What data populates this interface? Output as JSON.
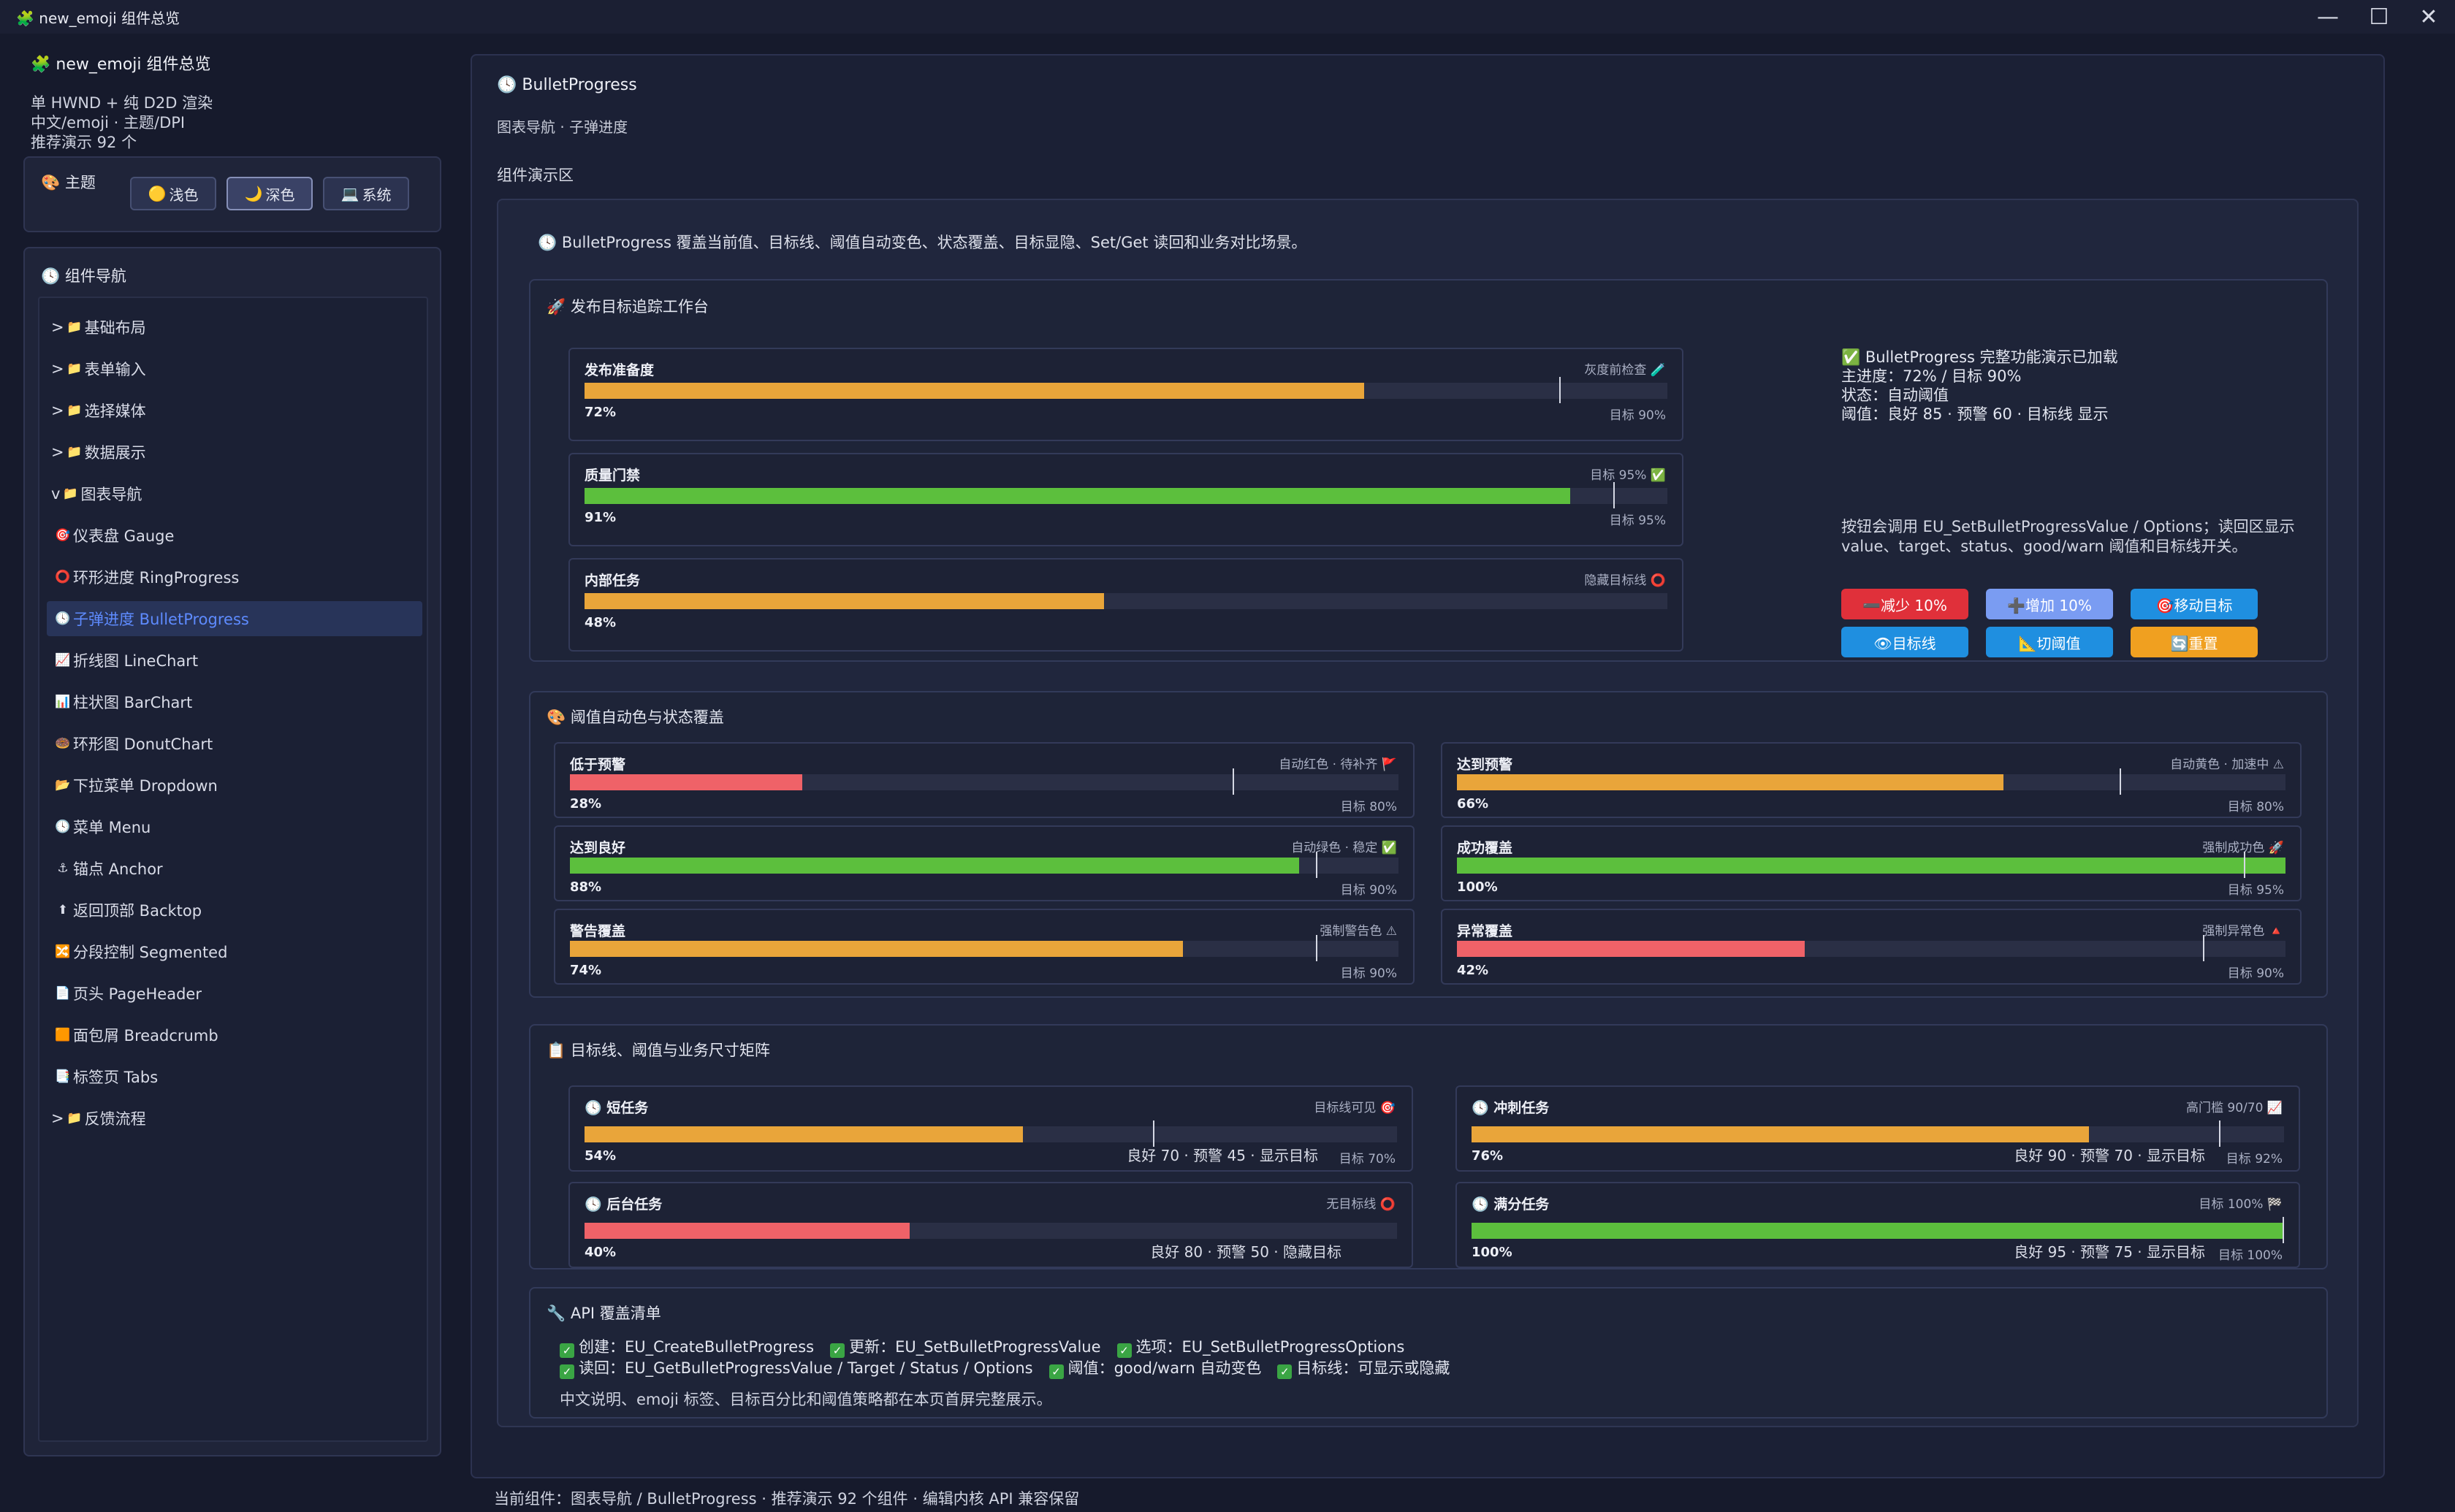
{
  "window": {
    "title": "new_emoji 组件总览",
    "icon": "puzzle-icon",
    "minimize": "—",
    "maximize": "☐",
    "close": "✕"
  },
  "sidebar": {
    "title": "new_emoji 组件总览",
    "desc": [
      "单 HWND + 纯 D2D 渲染",
      "中文/emoji · 主题/DPI",
      "推荐演示 92 个"
    ],
    "theme": {
      "label": "主题",
      "options": [
        {
          "icon": "🟡",
          "label": "浅色",
          "selected": false
        },
        {
          "icon": "🌙",
          "label": "深色",
          "selected": true
        },
        {
          "icon": "💻",
          "label": "系统",
          "selected": false
        }
      ]
    },
    "nav": {
      "label": "组件导航",
      "items": [
        {
          "prefix": ">",
          "icon": "📁",
          "label": "基础布局",
          "level": 0
        },
        {
          "prefix": ">",
          "icon": "📁",
          "label": "表单输入",
          "level": 0
        },
        {
          "prefix": ">",
          "icon": "📁",
          "label": "选择媒体",
          "level": 0
        },
        {
          "prefix": ">",
          "icon": "📁",
          "label": "数据展示",
          "level": 0
        },
        {
          "prefix": "v",
          "icon": "📁",
          "label": "图表导航",
          "level": 0
        },
        {
          "prefix": "",
          "icon": "🎯",
          "label": "仪表盘 Gauge",
          "level": 1
        },
        {
          "prefix": "",
          "icon": "⭕",
          "label": "环形进度 RingProgress",
          "level": 1
        },
        {
          "prefix": "",
          "icon": "🕓",
          "label": "子弹进度 BulletProgress",
          "level": 1,
          "selected": true
        },
        {
          "prefix": "",
          "icon": "📈",
          "label": "折线图 LineChart",
          "level": 1
        },
        {
          "prefix": "",
          "icon": "📊",
          "label": "柱状图 BarChart",
          "level": 1
        },
        {
          "prefix": "",
          "icon": "🍩",
          "label": "环形图 DonutChart",
          "level": 1
        },
        {
          "prefix": "",
          "icon": "📂",
          "label": "下拉菜单 Dropdown",
          "level": 1
        },
        {
          "prefix": "",
          "icon": "🕓",
          "label": "菜单 Menu",
          "level": 1
        },
        {
          "prefix": "",
          "icon": "⚓",
          "label": "锚点 Anchor",
          "level": 1
        },
        {
          "prefix": "",
          "icon": "⬆",
          "label": "返回顶部 Backtop",
          "level": 1
        },
        {
          "prefix": "",
          "icon": "🔀",
          "label": "分段控制 Segmented",
          "level": 1
        },
        {
          "prefix": "",
          "icon": "📄",
          "label": "页头 PageHeader",
          "level": 1
        },
        {
          "prefix": "",
          "icon": "🟧",
          "label": "面包屑 Breadcrumb",
          "level": 1
        },
        {
          "prefix": "",
          "icon": "📑",
          "label": "标签页 Tabs",
          "level": 1
        },
        {
          "prefix": ">",
          "icon": "📁",
          "label": "反馈流程",
          "level": 0
        }
      ]
    }
  },
  "main": {
    "title": "BulletProgress",
    "title_icon": "🕓",
    "subtitle": "图表导航 · 子弹进度",
    "demo_label": "组件演示区",
    "demo_desc": "BulletProgress 覆盖当前值、目标线、阈值自动变色、状态覆盖、目标显隐、Set/Get 读回和业务对比场景。",
    "section1": {
      "title": "发布目标追踪工作台",
      "icon": "🚀",
      "bars": [
        {
          "name": "发布准备度",
          "status": "灰度前检查 🧪",
          "value": 72,
          "target": 90,
          "target_label": "目标 90%",
          "pct": "72%",
          "color": "#e9a53a",
          "show_target": true
        },
        {
          "name": "质量门禁",
          "status": "目标 95% ✅",
          "value": 91,
          "target": 95,
          "target_label": "目标 95%",
          "pct": "91%",
          "color": "#5cbf3d",
          "show_target": true
        },
        {
          "name": "内部任务",
          "status": "隐藏目标线 ⭕",
          "value": 48,
          "target": null,
          "target_label": "",
          "pct": "48%",
          "color": "#e9a53a",
          "show_target": false
        }
      ],
      "info": "✅ BulletProgress 完整功能演示已加载\n主进度：72% / 目标 90%\n状态：自动阈值\n阈值：良好 85 · 预警 60 · 目标线 显示",
      "info2": "按钮会调用 EU_SetBulletProgressValue / Options；读回区显示 value、target、status、good/warn 阈值和目标线开关。",
      "buttons": [
        {
          "label": "➖减少 10%",
          "color": "#e0303a"
        },
        {
          "label": "➕增加 10%",
          "color": "#7a9cf2"
        },
        {
          "label": "🎯移动目标",
          "color": "#1f8fe0"
        },
        {
          "label": "👁目标线",
          "color": "#1f8fe0"
        },
        {
          "label": "📐切阈值",
          "color": "#1f8fe0"
        },
        {
          "label": "🔄重置",
          "color": "#f0a020"
        }
      ]
    },
    "section2": {
      "title": "阈值自动色与状态覆盖",
      "icon": "🎨",
      "bars": [
        {
          "name": "低于预警",
          "status": "自动红色 · 待补齐 🚩",
          "value": 28,
          "target": 80,
          "target_label": "目标 80%",
          "pct": "28%",
          "color": "#ef6268"
        },
        {
          "name": "达到预警",
          "status": "自动黄色 · 加速中 ⚠",
          "value": 66,
          "target": 80,
          "target_label": "目标 80%",
          "pct": "66%",
          "color": "#e9a53a"
        },
        {
          "name": "达到良好",
          "status": "自动绿色 · 稳定 ✅",
          "value": 88,
          "target": 90,
          "target_label": "目标 90%",
          "pct": "88%",
          "color": "#5cbf3d"
        },
        {
          "name": "成功覆盖",
          "status": "强制成功色 🚀",
          "value": 100,
          "target": 95,
          "target_label": "目标 95%",
          "pct": "100%",
          "color": "#5cbf3d"
        },
        {
          "name": "警告覆盖",
          "status": "强制警告色 ⚠",
          "value": 74,
          "target": 90,
          "target_label": "目标 90%",
          "pct": "74%",
          "color": "#e9a53a"
        },
        {
          "name": "异常覆盖",
          "status": "强制异常色 🔺",
          "value": 42,
          "target": 90,
          "target_label": "目标 90%",
          "pct": "42%",
          "color": "#ef6268"
        }
      ]
    },
    "section3": {
      "title": "目标线、阈值与业务尺寸矩阵",
      "icon": "📋",
      "bars": [
        {
          "name": "🕓 短任务",
          "status": "目标线可见 🎯",
          "value": 54,
          "target": 70,
          "target_label": "目标 70%",
          "pct": "54%",
          "color": "#e9a53a",
          "thr": "良好 70 · 预警 45 · 显示目标"
        },
        {
          "name": "🕓 冲刺任务",
          "status": "高门槛 90/70 📈",
          "value": 76,
          "target": 92,
          "target_label": "目标 92%",
          "pct": "76%",
          "color": "#e9a53a",
          "thr": "良好 90 · 预警 70 · 显示目标"
        },
        {
          "name": "🕓 后台任务",
          "status": "无目标线 ⭕",
          "value": 40,
          "target": null,
          "target_label": "",
          "pct": "40%",
          "color": "#ef6268",
          "thr": "良好 80 · 预警 50 · 隐藏目标"
        },
        {
          "name": "🕓 满分任务",
          "status": "目标 100% 🏁",
          "value": 100,
          "target": 100,
          "target_label": "目标 100%",
          "pct": "100%",
          "color": "#5cbf3d",
          "thr": "良好 95 · 预警 75 · 显示目标"
        }
      ]
    },
    "section4": {
      "title": "API 覆盖清单",
      "icon": "🔧",
      "line1": [
        "创建：EU_CreateBulletProgress",
        "更新：EU_SetBulletProgressValue",
        "选项：EU_SetBulletProgressOptions"
      ],
      "line2": [
        "读回：EU_GetBulletProgressValue / Target / Status / Options",
        "阈值：good/warn 自动变色",
        "目标线：可显示或隐藏"
      ],
      "check": "✓",
      "note": "中文说明、emoji 标签、目标百分比和阈值策略都在本页首屏完整展示。"
    }
  },
  "statusbar": "当前组件：图表导航 / BulletProgress · 推荐演示 92 个组件 · 编辑内核 API 兼容保留"
}
